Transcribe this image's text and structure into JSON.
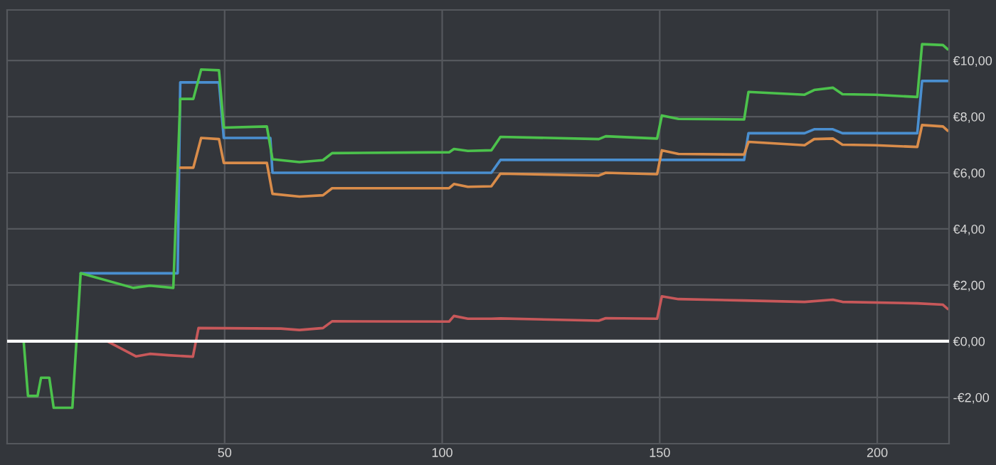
{
  "chart_data": {
    "type": "line",
    "series": [
      {
        "color": "#4a8fd0",
        "x": [
          16.9,
          39.2,
          39.8,
          48.7,
          49.8,
          60.5,
          61,
          111.3,
          113.4,
          169.4,
          170.4,
          183.3,
          185.5,
          189.8,
          192,
          209.2,
          210.3,
          216.2
        ],
        "values": [
          2.42,
          2.42,
          9.22,
          9.22,
          7.24,
          7.24,
          6.0,
          6.0,
          6.46,
          6.46,
          7.41,
          7.41,
          7.55,
          7.55,
          7.41,
          7.41,
          9.27,
          9.27
        ]
      },
      {
        "color": "#d98c4a",
        "x": [
          39.8,
          42.8,
          44.6,
          48.7,
          49.8,
          59.7,
          61,
          67.2,
          72.6,
          74.7,
          101.6,
          102.7,
          105.9,
          111.3,
          113.4,
          136,
          137.6,
          149.4,
          150.5,
          154.3,
          169.4,
          170.4,
          183.3,
          185.5,
          189.8,
          192,
          199.5,
          209.2,
          210.3,
          215.1,
          216.2
        ],
        "values": [
          6.18,
          6.18,
          7.24,
          7.2,
          6.35,
          6.35,
          5.25,
          5.15,
          5.2,
          5.45,
          5.45,
          5.6,
          5.5,
          5.52,
          5.97,
          5.9,
          6.0,
          5.95,
          6.8,
          6.67,
          6.65,
          7.1,
          6.98,
          7.2,
          7.22,
          7.0,
          6.98,
          6.92,
          7.7,
          7.65,
          7.5
        ]
      },
      {
        "color": "#4cc24c",
        "x": [
          0,
          3.8,
          4.8,
          7,
          7.8,
          9.7,
          10.7,
          15,
          16.9,
          29,
          32.8,
          38.2,
          39.8,
          42.8,
          44.6,
          48.7,
          49.8,
          59.7,
          61,
          67.2,
          72.6,
          74.7,
          101.6,
          102.7,
          105.9,
          111.3,
          113.4,
          136,
          137.6,
          149.4,
          150.5,
          154.3,
          169.4,
          170.4,
          183.3,
          185.5,
          189.8,
          192,
          199.5,
          209.2,
          210.3,
          215.1,
          216.2
        ],
        "values": [
          0,
          0,
          -1.95,
          -1.95,
          -1.3,
          -1.3,
          -2.37,
          -2.37,
          2.42,
          1.9,
          1.98,
          1.9,
          8.63,
          8.63,
          9.68,
          9.65,
          7.61,
          7.65,
          6.48,
          6.38,
          6.45,
          6.7,
          6.73,
          6.85,
          6.78,
          6.8,
          7.28,
          7.2,
          7.3,
          7.22,
          8.04,
          7.92,
          7.9,
          8.88,
          8.78,
          8.95,
          9.03,
          8.8,
          8.78,
          8.7,
          10.58,
          10.55,
          10.4
        ]
      },
      {
        "color": "#c8585a",
        "x": [
          0,
          23,
          29.6,
          32.8,
          37.1,
          42.7,
          44,
          62.9,
          67.2,
          72.6,
          74.7,
          101.6,
          102.7,
          105.9,
          111.3,
          113.4,
          136,
          137.6,
          149.4,
          150.5,
          154.3,
          169.4,
          183.3,
          189.8,
          192,
          209.2,
          215.1,
          216.2
        ],
        "values": [
          0,
          0,
          -0.54,
          -0.45,
          -0.5,
          -0.55,
          0.47,
          0.45,
          0.4,
          0.47,
          0.71,
          0.7,
          0.9,
          0.8,
          0.8,
          0.81,
          0.73,
          0.82,
          0.8,
          1.6,
          1.5,
          1.45,
          1.4,
          1.48,
          1.4,
          1.35,
          1.3,
          1.15
        ]
      }
    ],
    "xlim": [
      0,
      216.5
    ],
    "xticks": [
      50,
      100,
      150,
      200
    ],
    "ylim": [
      -3.65,
      11.8
    ],
    "yticks": [
      {
        "value": -2,
        "label": "-€2,00"
      },
      {
        "value": 0,
        "label": "€0,00"
      },
      {
        "value": 2,
        "label": "€2,00"
      },
      {
        "value": 4,
        "label": "€4,00"
      },
      {
        "value": 6,
        "label": "€6,00"
      },
      {
        "value": 8,
        "label": "€8,00"
      },
      {
        "value": 10,
        "label": "€10,00"
      }
    ],
    "ref_lines": [
      {
        "axis": "y",
        "value": 0,
        "color": "#ffffff"
      }
    ],
    "grid": true,
    "legend": false
  }
}
